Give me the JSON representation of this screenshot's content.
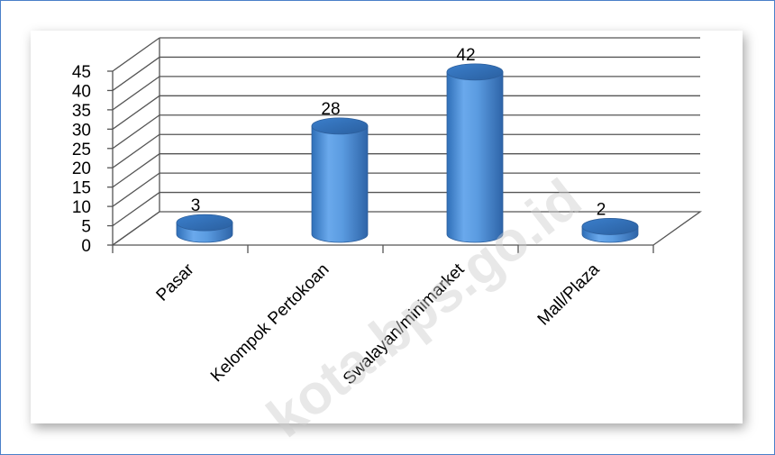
{
  "chart_data": {
    "type": "bar",
    "categories": [
      "Pasar",
      "Kelompok Pertokoan",
      "Swalayan/minimarket",
      "Mall/Plaza"
    ],
    "values": [
      3,
      28,
      42,
      2
    ],
    "ylim": [
      0,
      45
    ],
    "yticks": [
      0,
      5,
      10,
      15,
      20,
      25,
      30,
      35,
      40,
      45
    ],
    "grid": true,
    "legend": "none",
    "bar_color": "#5a9be0"
  },
  "watermark": "kota.bps.go.id"
}
